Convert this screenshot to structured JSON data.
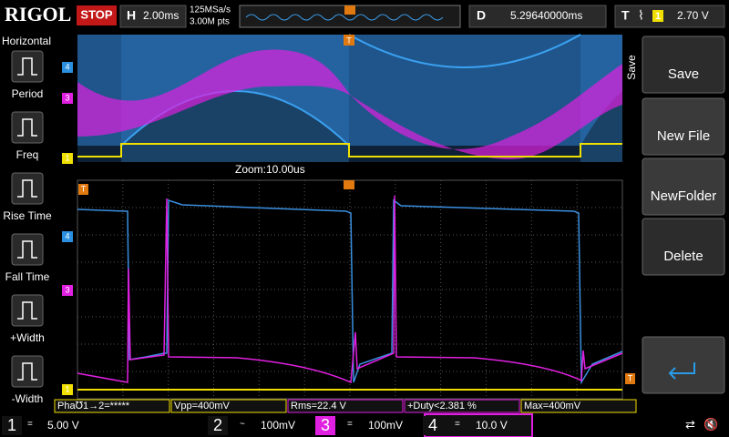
{
  "header": {
    "brand": "RIGOL",
    "status": "STOP",
    "h_label": "H",
    "timebase": "2.00ms",
    "sample_rate": "125MSa/s",
    "memory_depth": "3.00M pts",
    "delay_label": "D",
    "delay": "5.29640000ms",
    "trigger_label": "T",
    "trigger_source": "1",
    "trigger_level": "2.70 V"
  },
  "left_menu": {
    "title": "Horizontal",
    "items": [
      "Period",
      "Freq",
      "Rise Time",
      "Fall Time",
      "+Width",
      "-Width"
    ]
  },
  "right_menu": {
    "title": "Save",
    "items": [
      "Save",
      "New File",
      "NewFolder",
      "Delete"
    ]
  },
  "zoom_label": "Zoom:10.00us",
  "measurements": [
    "Pha℧1→2=*****",
    "Vpp=400mV",
    "Rms=22.4 V",
    "+Duty<2.381 %",
    "Max=400mV"
  ],
  "channels": [
    {
      "number": "1",
      "scale": "5.00 V"
    },
    {
      "number": "2",
      "scale": "100mV"
    },
    {
      "number": "3",
      "scale": "100mV"
    },
    {
      "number": "4",
      "scale": "10.0 V"
    }
  ]
}
